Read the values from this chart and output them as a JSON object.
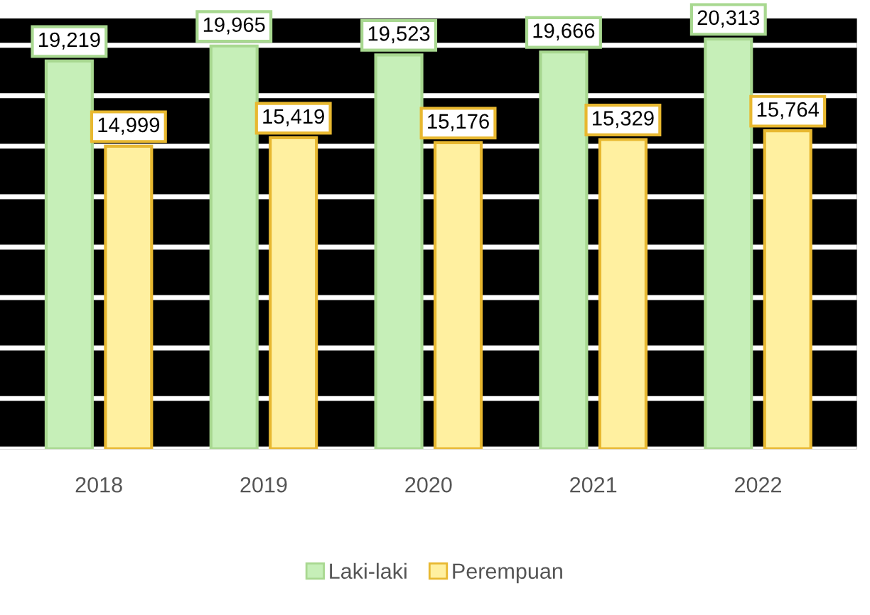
{
  "chart_data": {
    "type": "bar",
    "categories": [
      "2018",
      "2019",
      "2020",
      "2021",
      "2022"
    ],
    "series": [
      {
        "name": "Laki-laki",
        "color": "#c6efb8",
        "values": [
          19219,
          19965,
          19523,
          19666,
          20313
        ],
        "value_labels": [
          "19,219",
          "19,965",
          "19,523",
          "19,666",
          "20,313"
        ]
      },
      {
        "name": "Perempuan",
        "color": "#fff0a0",
        "values": [
          14999,
          15419,
          15176,
          15329,
          15764
        ],
        "value_labels": [
          "14,999",
          "15,419",
          "15,176",
          "15,329",
          "15,764"
        ]
      }
    ],
    "tick_labels": "x",
    "grid": "y",
    "legend": "bottom"
  }
}
